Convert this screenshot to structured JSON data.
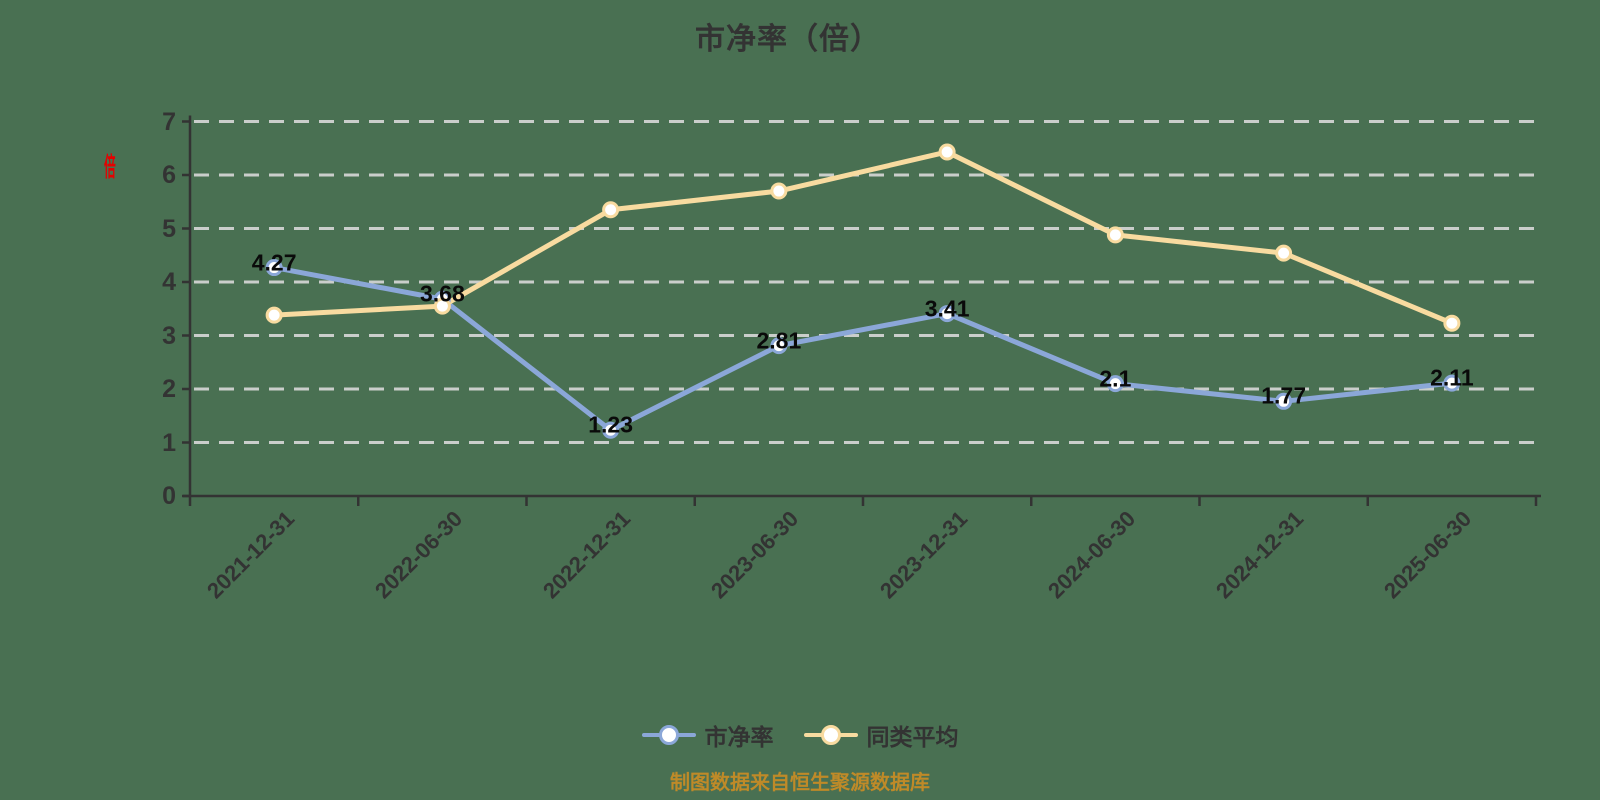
{
  "title": "市净率（倍）",
  "y_axis_unit": "倍",
  "caption": "制图数据来自恒生聚源数据库",
  "colors": {
    "background": "#497052",
    "axis": "#333333",
    "gridline": "#d6d6d6",
    "series_pb": "#8ba7d8",
    "series_avg": "#f8dba0",
    "data_label": "#0a0a0a",
    "y_unit_red": "#e60000",
    "caption_orange": "#bf8a28",
    "marker_fill": "#ffffff"
  },
  "chart_data": {
    "type": "line",
    "title": "市净率（倍）",
    "categories": [
      "2021-12-31",
      "2022-06-30",
      "2022-12-31",
      "2023-06-30",
      "2023-12-31",
      "2024-06-30",
      "2024-12-31",
      "2025-06-30"
    ],
    "series": [
      {
        "name": "市净率",
        "color": "#8ba7d8",
        "values": [
          4.27,
          3.68,
          1.23,
          2.81,
          3.41,
          2.1,
          1.77,
          2.11
        ],
        "labels": [
          "4.27",
          "3.68",
          "1.23",
          "2.81",
          "3.41",
          "2.1",
          "1.77",
          "2.11"
        ],
        "show_labels": true
      },
      {
        "name": "同类平均",
        "color": "#f8dba0",
        "values": [
          3.38,
          3.55,
          5.35,
          5.7,
          6.43,
          4.88,
          4.54,
          3.23
        ],
        "labels": [],
        "show_labels": false
      }
    ],
    "xlabel": "",
    "ylabel": "倍",
    "ylim": [
      0,
      7
    ],
    "y_ticks": [
      0,
      1,
      2,
      3,
      4,
      5,
      6,
      7
    ],
    "grid": "horizontal dashed",
    "legend_position": "bottom",
    "x_label_rotation": 45
  },
  "legend": {
    "items": [
      {
        "label": "市净率",
        "color": "#8ba7d8"
      },
      {
        "label": "同类平均",
        "color": "#f8dba0"
      }
    ]
  }
}
